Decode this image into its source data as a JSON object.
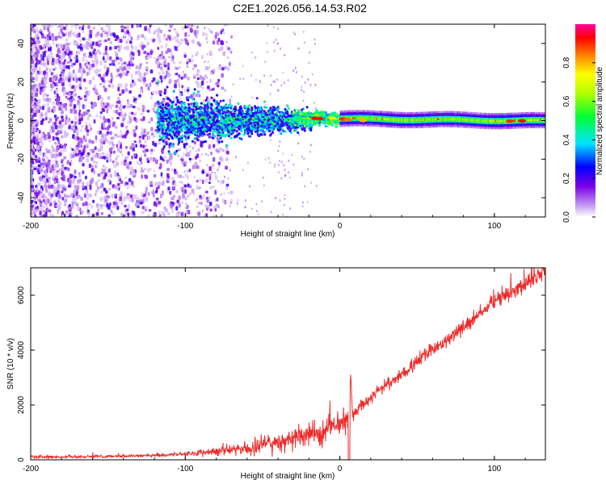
{
  "title": "C2E1.2026.056.14.53.R02",
  "chart_data": [
    {
      "type": "heatmap",
      "title": "C2E1.2026.056.14.53.R02",
      "xlabel": "Height of straight line (km)",
      "ylabel": "Frequency (Hz)",
      "xlim": [
        -200,
        133
      ],
      "ylim": [
        -50,
        50
      ],
      "xticks": [
        "-200",
        "-100",
        "0",
        "100"
      ],
      "yticks": [
        "-40",
        "-20",
        "0",
        "20",
        "40"
      ],
      "colorbar": {
        "label": "Normalized spectral amplitude",
        "range": [
          0,
          1
        ],
        "ticks": [
          "0.0",
          "0.2",
          "0.4",
          "0.6",
          "0.8"
        ]
      },
      "description_points": [
        {
          "x": -200,
          "y": 0,
          "v": 0.2
        },
        {
          "x": -115,
          "y": 0,
          "v": 0.35
        },
        {
          "x": -30,
          "y": 0,
          "v": 0.45
        },
        {
          "x": -15,
          "y": 1.5,
          "v": 0.9
        },
        {
          "x": 0,
          "y": 1,
          "v": 0.85
        },
        {
          "x": 60,
          "y": 0,
          "v": 0.6
        },
        {
          "x": 120,
          "y": 0,
          "v": 0.8
        }
      ]
    },
    {
      "type": "line",
      "xlabel": "Height of straight line (km)",
      "ylabel": "SNR (10 * v/v)",
      "xlim": [
        -200,
        133
      ],
      "ylim": [
        0,
        7000
      ],
      "xticks": [
        "-200",
        "-100",
        "0",
        "100"
      ],
      "yticks": [
        "0",
        "2000",
        "4000",
        "6000"
      ],
      "series": [
        {
          "name": "SNR",
          "color": "#ee2a2a",
          "x": [
            -200,
            -150,
            -100,
            -80,
            -60,
            -40,
            -20,
            -10,
            0,
            10,
            20,
            40,
            60,
            80,
            100,
            120,
            133
          ],
          "y": [
            100,
            120,
            200,
            320,
            420,
            600,
            900,
            1100,
            1300,
            1700,
            2300,
            3100,
            4000,
            4800,
            5800,
            6400,
            6900
          ]
        }
      ]
    }
  ]
}
